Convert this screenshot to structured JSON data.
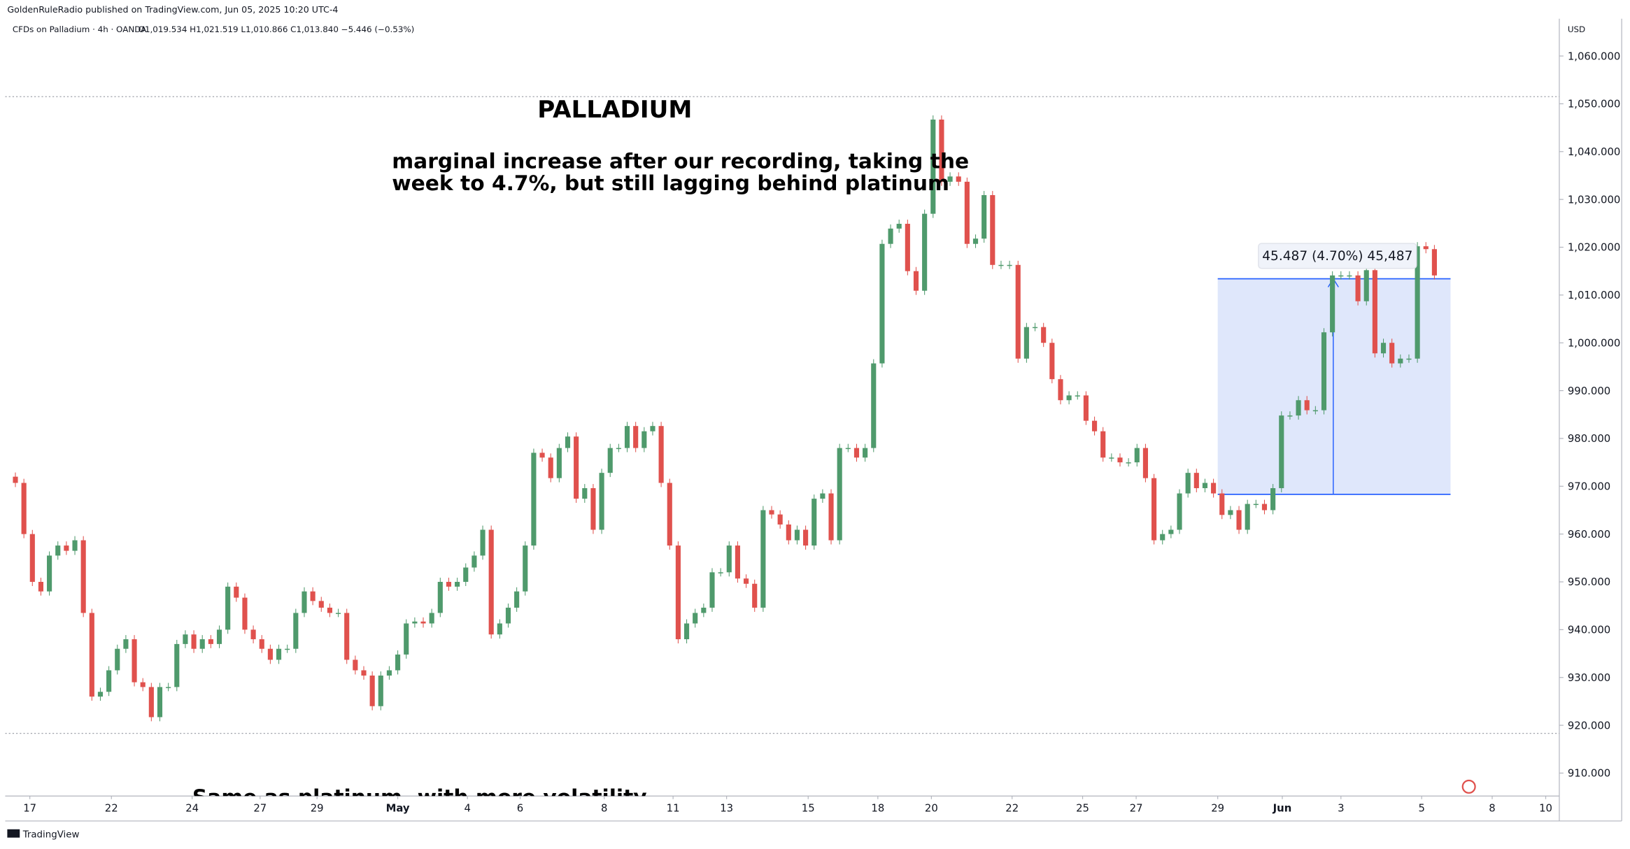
{
  "header": {
    "publisher": "GoldenRuleRadio published on TradingView.com, Jun 05, 2025 10:20 UTC-4",
    "symbol": "CFDs on Palladium · 4h · OANDA",
    "ohlc": "O1,019.534 H1,021.519 L1,010.866 C1,013.840 −5.446 (−0.53%)",
    "currency": "USD",
    "logo": "TradingView"
  },
  "chart_data": {
    "type": "candlestick",
    "annotations": [
      "PALLADIUM",
      "marginal increase after our recording, taking the",
      "week to 4.7%, but still lagging behind platinum",
      "Same as platinum, with more volatility"
    ],
    "first_open": 972,
    "close": [
      970.7,
      960,
      950,
      948,
      955.5,
      957.6,
      956.5,
      958.7,
      943.5,
      926,
      927,
      931.5,
      936,
      938,
      929,
      928,
      921.7,
      928,
      928,
      937,
      939,
      936,
      938,
      937,
      940,
      949,
      946.7,
      940,
      938,
      936,
      933.7,
      936,
      936,
      943.5,
      948,
      946,
      944.6,
      943.5,
      943.5,
      933.7,
      931.5,
      930.4,
      924,
      930.4,
      931.5,
      934.8,
      941.3,
      941.7,
      941.3,
      943.5,
      950,
      949,
      950,
      953,
      955.5,
      960.9,
      939,
      941.3,
      944.6,
      948,
      957.6,
      977,
      976,
      971.7,
      978,
      980.4,
      967.4,
      969.6,
      960.9,
      972.8,
      978,
      978,
      982.6,
      978,
      981.5,
      982.6,
      970.7,
      957.6,
      938,
      941.3,
      943.5,
      944.6,
      952,
      952,
      957.6,
      950.7,
      949.6,
      944.6,
      965,
      964.1,
      962,
      958.7,
      960.9,
      957.6,
      967.4,
      968.5,
      958.7,
      978,
      978,
      976,
      978,
      995.7,
      1020.7,
      1023.9,
      1024.9,
      1015,
      1010.9,
      1027,
      1046.7,
      1033.7,
      1034.8,
      1033.7,
      1020.7,
      1021.8,
      1030.9,
      1016.3,
      1016.3,
      1016.3,
      996.7,
      1003.3,
      1003.3,
      1000,
      992.4,
      988,
      989,
      989,
      983.7,
      981.5,
      976,
      976,
      975,
      975,
      978,
      971.7,
      958.7,
      960,
      960.9,
      968.5,
      972.8,
      969.6,
      970.7,
      968.5,
      964,
      965,
      960.9,
      966.3,
      966.3,
      965,
      969.6,
      984.8,
      984.8,
      988,
      985.9,
      985.9,
      1002.2,
      1014.1,
      1014.1,
      1014.1,
      1008.7,
      1015.2,
      997.8,
      1000,
      995.7,
      996.7,
      996.7,
      1020.2,
      1019.6,
      1014.1
    ],
    "up_color": "#4f9a6c",
    "down_color": "#e0514d",
    "xlim": [
      -1.2,
      181.7
    ],
    "xticks": [
      {
        "value": 1.7,
        "label": "17"
      },
      {
        "value": 11.3,
        "label": "22"
      },
      {
        "value": 20.8,
        "label": "24"
      },
      {
        "value": 28.8,
        "label": "27"
      },
      {
        "value": 35.5,
        "label": "29"
      },
      {
        "value": 45,
        "label": "May"
      },
      {
        "value": 53.2,
        "label": "4"
      },
      {
        "value": 59.4,
        "label": "6"
      },
      {
        "value": 69.3,
        "label": "8"
      },
      {
        "value": 77.4,
        "label": "11"
      },
      {
        "value": 83.7,
        "label": "13"
      },
      {
        "value": 93.3,
        "label": "15"
      },
      {
        "value": 101.5,
        "label": "18"
      },
      {
        "value": 107.8,
        "label": "20"
      },
      {
        "value": 117.3,
        "label": "22"
      },
      {
        "value": 125.6,
        "label": "25"
      },
      {
        "value": 131.9,
        "label": "27"
      },
      {
        "value": 141.5,
        "label": "29"
      },
      {
        "value": 149.1,
        "label": "Jun"
      },
      {
        "value": 156,
        "label": "3"
      },
      {
        "value": 165.5,
        "label": "5"
      },
      {
        "value": 173.8,
        "label": "8"
      },
      {
        "value": 180.1,
        "label": "10"
      }
    ],
    "ylim": [
      905.2,
      1067.8
    ],
    "yticks": [
      {
        "value": 910,
        "label": "910.000"
      },
      {
        "value": 920,
        "label": "920.000"
      },
      {
        "value": 930,
        "label": "930.000"
      },
      {
        "value": 940,
        "label": "940.000"
      },
      {
        "value": 950,
        "label": "950.000"
      },
      {
        "value": 960,
        "label": "960.000"
      },
      {
        "value": 970,
        "label": "970.000"
      },
      {
        "value": 980,
        "label": "980.000"
      },
      {
        "value": 990,
        "label": "990.000"
      },
      {
        "value": 1000,
        "label": "1,000.000"
      },
      {
        "value": 1010,
        "label": "1,010.000"
      },
      {
        "value": 1020,
        "label": "1,020.000"
      },
      {
        "value": 1030,
        "label": "1,030.000"
      },
      {
        "value": 1040,
        "label": "1,040.000"
      },
      {
        "value": 1050,
        "label": "1,050.000"
      },
      {
        "value": 1060,
        "label": "1,060.000"
      }
    ],
    "hlines": [
      1051.5,
      918.3
    ],
    "measure": {
      "label": "45.487 (4.70%) 45,487",
      "from": 968.3,
      "to": 1013.4,
      "x_from": 141.5,
      "x_to": 168.9,
      "x_arrow": 155.1,
      "color": "#2962ff",
      "fill": "#dbe4fb"
    }
  }
}
